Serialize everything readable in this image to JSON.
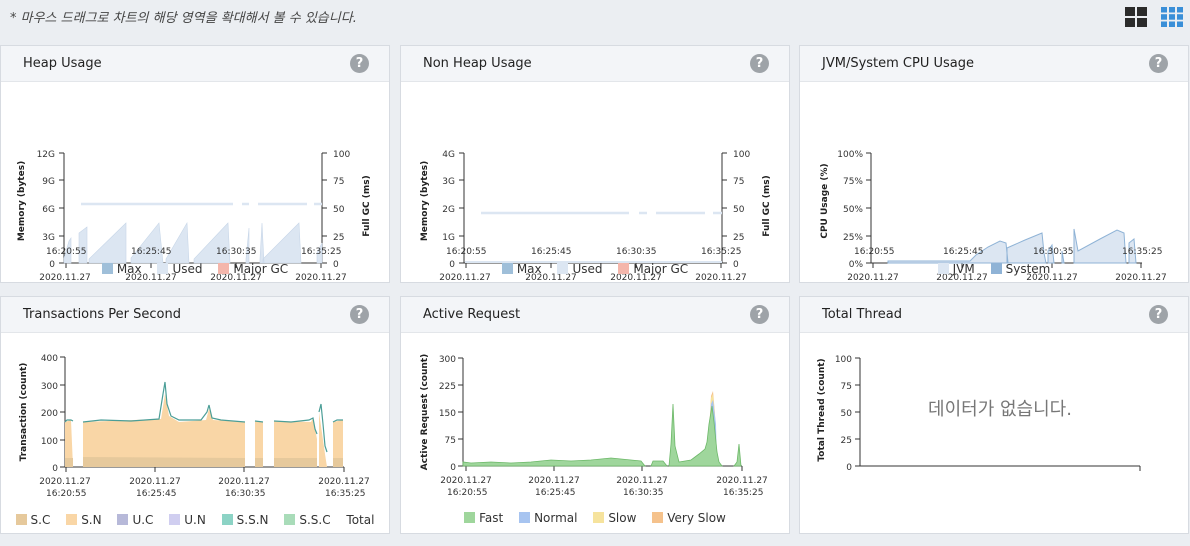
{
  "hint": "* 마우스 드래그로 차트의 해당 영역을 확대해서 볼 수 있습니다.",
  "colors": {
    "max": "#9fbfd9",
    "used": "#dce6f2",
    "majorgc": "#f4b6ab",
    "jvm": "#dce6f2",
    "system": "#8fb3d6",
    "sc": "#e6c99c",
    "sn": "#f9d6a6",
    "uc": "#b7b9d9",
    "un": "#d0cef0",
    "ssn": "#8cd3c5",
    "ssc": "#a9dcb9",
    "total": "#4b9e97",
    "fast": "#9fd69c",
    "normal": "#a7c4f0",
    "slow": "#f6e39d",
    "veryslow": "#f5c28c"
  },
  "panels": [
    {
      "id": "heap",
      "title": "Heap Usage",
      "ylabel": "Memory (bytes)",
      "y2label": "Full GC (ms)",
      "yticks": [
        "0",
        "3G",
        "6G",
        "9G",
        "12G"
      ],
      "y2ticks": [
        "0",
        "25",
        "50",
        "75",
        "100"
      ],
      "xticks": [
        [
          "2020.11.27",
          "16:20:55"
        ],
        [
          "2020.11.27",
          "16:25:45"
        ],
        [
          "2020.11.27",
          "16:30:35"
        ],
        [
          "2020.11.27",
          "16:35:25"
        ]
      ],
      "legend": [
        {
          "label": "Max",
          "color": "#9fbfd9"
        },
        {
          "label": "Used",
          "color": "#dce6f2"
        },
        {
          "label": "Major GC",
          "color": "#f4b6ab"
        }
      ]
    },
    {
      "id": "nonheap",
      "title": "Non Heap Usage",
      "ylabel": "Memory (bytes)",
      "y2label": "Full GC (ms)",
      "yticks": [
        "0",
        "1G",
        "2G",
        "3G",
        "4G"
      ],
      "y2ticks": [
        "0",
        "25",
        "50",
        "75",
        "100"
      ],
      "xticks": [
        [
          "2020.11.27",
          "16:20:55"
        ],
        [
          "2020.11.27",
          "16:25:45"
        ],
        [
          "2020.11.27",
          "16:30:35"
        ],
        [
          "2020.11.27",
          "16:35:25"
        ]
      ],
      "legend": [
        {
          "label": "Max",
          "color": "#9fbfd9"
        },
        {
          "label": "Used",
          "color": "#dce6f2"
        },
        {
          "label": "Major GC",
          "color": "#f4b6ab"
        }
      ]
    },
    {
      "id": "cpu",
      "title": "JVM/System CPU Usage",
      "ylabel": "CPU Usage (%)",
      "yticks": [
        "0%",
        "25%",
        "50%",
        "75%",
        "100%"
      ],
      "xticks": [
        [
          "2020.11.27",
          "16:20:55"
        ],
        [
          "2020.11.27",
          "16:25:45"
        ],
        [
          "2020.11.27",
          "16:30:35"
        ],
        [
          "2020.11.27",
          "16:35:25"
        ]
      ],
      "legend": [
        {
          "label": "JVM",
          "color": "#dce6f2"
        },
        {
          "label": "System",
          "color": "#8fb3d6"
        }
      ]
    },
    {
      "id": "tps",
      "title": "Transactions Per Second",
      "ylabel": "Transaction (count)",
      "yticks": [
        "0",
        "100",
        "200",
        "300",
        "400"
      ],
      "xticks": [
        [
          "2020.11.27",
          "16:20:55"
        ],
        [
          "2020.11.27",
          "16:25:45"
        ],
        [
          "2020.11.27",
          "16:30:35"
        ],
        [
          "2020.11.27",
          "16:35:25"
        ]
      ],
      "legend": [
        {
          "label": "S.C",
          "color": "#e6c99c"
        },
        {
          "label": "S.N",
          "color": "#f9d6a6"
        },
        {
          "label": "U.C",
          "color": "#b7b9d9"
        },
        {
          "label": "U.N",
          "color": "#d0cef0"
        },
        {
          "label": "S.S.N",
          "color": "#8cd3c5"
        },
        {
          "label": "S.S.C",
          "color": "#a9dcb9"
        },
        {
          "label": "Total",
          "color": ""
        }
      ]
    },
    {
      "id": "active",
      "title": "Active Request",
      "ylabel": "Active Request (count)",
      "yticks": [
        "0",
        "75",
        "150",
        "225",
        "300"
      ],
      "xticks": [
        [
          "2020.11.27",
          "16:20:55"
        ],
        [
          "2020.11.27",
          "16:25:45"
        ],
        [
          "2020.11.27",
          "16:30:35"
        ],
        [
          "2020.11.27",
          "16:35:25"
        ]
      ],
      "legend": [
        {
          "label": "Fast",
          "color": "#9fd69c"
        },
        {
          "label": "Normal",
          "color": "#a7c4f0"
        },
        {
          "label": "Slow",
          "color": "#f6e39d"
        },
        {
          "label": "Very Slow",
          "color": "#f5c28c"
        }
      ]
    },
    {
      "id": "thread",
      "title": "Total Thread",
      "ylabel": "Total Thread (count)",
      "yticks": [
        "0",
        "25",
        "50",
        "75",
        "100"
      ],
      "nodata": "데이터가 없습니다."
    }
  ],
  "chart_data": [
    {
      "type": "area",
      "title": "Heap Usage",
      "ylabel": "Memory (bytes)",
      "y2label": "Full GC (ms)",
      "xlim": [
        "16:20:55",
        "16:35:25"
      ],
      "ylim": [
        0,
        12
      ],
      "y2lim": [
        0,
        100
      ],
      "series": [
        {
          "name": "Max",
          "points": [
            [
              0,
              6.6
            ],
            [
              14.5,
              6.6
            ]
          ]
        },
        {
          "name": "Used",
          "points": [
            [
              0,
              0.5
            ],
            [
              0.4,
              3.5
            ],
            [
              1.0,
              4.2
            ],
            [
              1.2,
              0.6
            ],
            [
              2.8,
              4.5
            ],
            [
              3.2,
              0.5
            ],
            [
              4.7,
              4.4
            ],
            [
              5.1,
              0.6
            ],
            [
              6.7,
              4.4
            ],
            [
              7.1,
              0.6
            ],
            [
              8.8,
              4.4
            ],
            [
              9.2,
              0.6
            ],
            [
              10.4,
              0.6
            ],
            [
              10.5,
              4.2
            ],
            [
              10.7,
              0.6
            ],
            [
              12.6,
              4.4
            ],
            [
              13.4,
              0.6
            ],
            [
              14.3,
              2.5
            ]
          ]
        },
        {
          "name": "Major GC",
          "points": []
        }
      ]
    },
    {
      "type": "area",
      "title": "Non Heap Usage",
      "ylabel": "Memory (bytes)",
      "y2label": "Full GC (ms)",
      "ylim": [
        0,
        4
      ],
      "y2lim": [
        0,
        100
      ],
      "series": [
        {
          "name": "Max",
          "points": [
            [
              0,
              1.85
            ],
            [
              14.5,
              1.85
            ]
          ]
        },
        {
          "name": "Used",
          "points": [
            [
              0,
              0.08
            ],
            [
              14.5,
              0.1
            ]
          ]
        },
        {
          "name": "Major GC",
          "points": []
        }
      ]
    },
    {
      "type": "area",
      "title": "JVM/System CPU Usage",
      "ylabel": "CPU Usage (%)",
      "ylim": [
        0,
        100
      ],
      "series": [
        {
          "name": "JVM",
          "points": [
            [
              0,
              2
            ],
            [
              6.0,
              2
            ],
            [
              6.5,
              8
            ],
            [
              8.0,
              24
            ],
            [
              8.5,
              22
            ],
            [
              9.5,
              28
            ],
            [
              11.3,
              30
            ],
            [
              11.5,
              2
            ],
            [
              12.0,
              10
            ],
            [
              13.5,
              22
            ],
            [
              14.0,
              30
            ],
            [
              14.5,
              32
            ]
          ]
        },
        {
          "name": "System",
          "points": [
            [
              0,
              2
            ],
            [
              14.5,
              2
            ]
          ]
        }
      ]
    },
    {
      "type": "area",
      "title": "Transactions Per Second",
      "ylabel": "Transaction (count)",
      "ylim": [
        0,
        400
      ],
      "series": [
        {
          "name": "S.C",
          "points": [
            [
              0,
              30
            ],
            [
              14.5,
              30
            ]
          ]
        },
        {
          "name": "S.N",
          "points": [
            [
              0,
              150
            ],
            [
              14.5,
              150
            ]
          ]
        },
        {
          "name": "U.C",
          "points": []
        },
        {
          "name": "U.N",
          "points": []
        },
        {
          "name": "S.S.N",
          "points": []
        },
        {
          "name": "S.S.C",
          "points": []
        },
        {
          "name": "Total",
          "points": [
            [
              0,
              165
            ],
            [
              5.0,
              175
            ],
            [
              5.4,
              315
            ],
            [
              5.8,
              200
            ],
            [
              7.0,
              180
            ],
            [
              7.5,
              220
            ],
            [
              8.0,
              180
            ],
            [
              10.5,
              180
            ],
            [
              12.6,
              172
            ],
            [
              13.0,
              245
            ],
            [
              13.3,
              60
            ],
            [
              14.5,
              178
            ]
          ]
        }
      ]
    },
    {
      "type": "area",
      "title": "Active Request",
      "ylabel": "Active Request (count)",
      "ylim": [
        0,
        300
      ],
      "series": [
        {
          "name": "Fast",
          "points": [
            [
              0,
              10
            ],
            [
              9.0,
              12
            ],
            [
              11.3,
              160
            ],
            [
              11.6,
              15
            ],
            [
              13.0,
              185
            ],
            [
              13.4,
              15
            ],
            [
              14.4,
              55
            ]
          ]
        },
        {
          "name": "Normal",
          "points": [
            [
              13.0,
              190
            ],
            [
              13.2,
              195
            ]
          ]
        },
        {
          "name": "Slow",
          "points": [
            [
              13.1,
              205
            ]
          ]
        },
        {
          "name": "Very Slow",
          "points": [
            [
              13.1,
              210
            ]
          ]
        }
      ]
    },
    {
      "type": "line",
      "title": "Total Thread",
      "ylabel": "Total Thread (count)",
      "ylim": [
        0,
        100
      ],
      "series": []
    }
  ]
}
